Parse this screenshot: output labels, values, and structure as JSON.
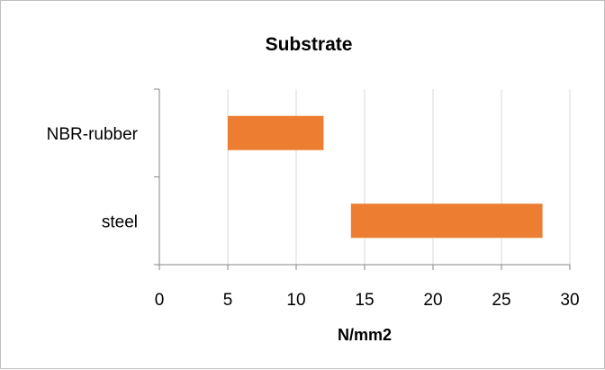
{
  "chart_data": {
    "type": "bar",
    "subtype": "floating-horizontal-range",
    "title": "Substrate",
    "xlabel": "N/mm2",
    "ylabel": "",
    "categories": [
      "NBR-rubber",
      "steel"
    ],
    "series": [
      {
        "ranges": [
          [
            5,
            12
          ],
          [
            14,
            28
          ]
        ]
      }
    ],
    "x_ticks": [
      "0",
      "5",
      "10",
      "15",
      "20",
      "25",
      "30"
    ],
    "xlim": [
      0,
      30
    ],
    "grid": "vertical major gridlines",
    "legend": "none",
    "bar_color": "#ED7D31",
    "grid_color": "#d9d9d9",
    "axis_color": "#868686"
  }
}
